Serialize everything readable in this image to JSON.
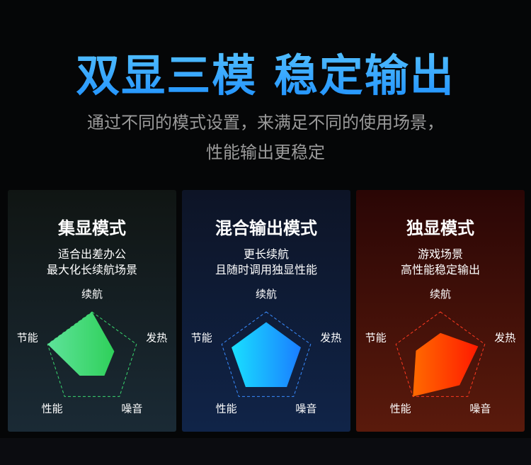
{
  "title": "双显三模 稳定输出",
  "subtitle_line1": "通过不同的模式设置，来满足不同的使用场景，",
  "subtitle_line2": "性能输出更稳定",
  "axes": [
    "续航",
    "发热",
    "噪音",
    "性能",
    "节能"
  ],
  "cards": [
    {
      "title": "集显模式",
      "desc1": "适合出差办公",
      "desc2": "最大化长续航场景",
      "values": [
        1.0,
        0.5,
        0.45,
        0.45,
        1.0
      ],
      "color_from": "#5ee39a",
      "color_to": "#2fd05a",
      "stroke": "#3ad870"
    },
    {
      "title": "混合输出模式",
      "desc1": "更长续航",
      "desc2": "且随时调用独显性能",
      "values": [
        0.78,
        0.78,
        0.75,
        0.75,
        0.78
      ],
      "color_from": "#19e0ff",
      "color_to": "#1a7dff",
      "stroke": "#3a8cff"
    },
    {
      "title": "独显模式",
      "desc1": "游戏场景",
      "desc2": "高性能稳定输出",
      "values": [
        0.55,
        0.85,
        0.7,
        1.0,
        0.55
      ],
      "color_from": "#ff6a00",
      "color_to": "#ff1a00",
      "stroke": "#ff3a20"
    }
  ]
}
